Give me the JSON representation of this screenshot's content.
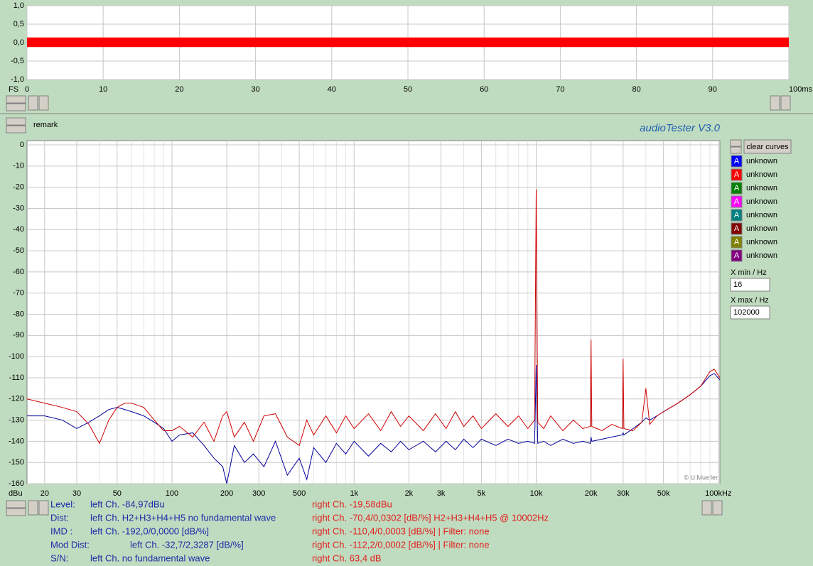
{
  "app": {
    "title": "audioTester  V3.0",
    "remark": "remark",
    "copyright": "© U.Mueller",
    "clear_button": "clear curves",
    "x_min_label": "X min / Hz",
    "x_max_label": "X max / Hz",
    "channels": [
      {
        "symbol": "A",
        "color": "#0000ff",
        "label": "unknown"
      },
      {
        "symbol": "A",
        "color": "#ff0000",
        "label": "unknown"
      },
      {
        "symbol": "A",
        "color": "#008000",
        "label": "unknown"
      },
      {
        "symbol": "A",
        "color": "#ff00ff",
        "label": "unknown"
      },
      {
        "symbol": "A",
        "color": "#008080",
        "label": "unknown"
      },
      {
        "symbol": "A",
        "color": "#800000",
        "label": "unknown"
      },
      {
        "symbol": "A",
        "color": "#808000",
        "label": "unknown"
      },
      {
        "symbol": "A",
        "color": "#800080",
        "label": "unknown"
      }
    ],
    "results": [
      {
        "label": "Level:",
        "left": "left Ch. -84,97dBu",
        "right": "right Ch. -19,58dBu"
      },
      {
        "label": "Dist:",
        "left": "left Ch. H2+H3+H4+H5 no fundamental wave",
        "right": "right Ch. -70,4/0,0302 [dB/%] H2+H3+H4+H5 @ 10002Hz"
      },
      {
        "label": "IMD  :",
        "left": "left Ch. -192,0/0,0000 [dB/%]",
        "right": "right Ch. -110,4/0,0003 [dB/%] |   Filter: none"
      },
      {
        "label": "Mod Dist:",
        "left": "left Ch. -32,7/2,3287 [dB/%]",
        "right": "right Ch. -112,2/0,0002 [dB/%] |   Filter: none"
      },
      {
        "label": "S/N:",
        "left": "left Ch.  no fundamental wave",
        "right": "right Ch. 63,4 dB"
      }
    ]
  },
  "chart_data": [
    {
      "type": "area",
      "y_label": "FS",
      "x": [
        0,
        100
      ],
      "y_high": [
        0.14,
        0.14
      ],
      "y_low": [
        -0.12,
        -0.12
      ],
      "color": "#ff0000",
      "xlim": [
        0,
        100
      ],
      "ylim": [
        -1,
        1
      ],
      "grid": true,
      "xticks": [
        0,
        10,
        20,
        30,
        40,
        50,
        60,
        70,
        80,
        90,
        {
          "value": 100,
          "label": "100ms"
        }
      ],
      "yticks": [
        {
          "value": 1,
          "label": "1,0"
        },
        {
          "value": 0.5,
          "label": "0,5"
        },
        {
          "value": 0,
          "label": "0,0"
        },
        {
          "value": -0.5,
          "label": "-0,5"
        },
        {
          "value": -1,
          "label": "-1,0"
        }
      ]
    },
    {
      "type": "line",
      "y_label": "dBu",
      "log_x": true,
      "grid": true,
      "xlim": [
        16,
        102000
      ],
      "ylim": [
        -160,
        0
      ],
      "xticks": [
        20,
        30,
        50,
        100,
        200,
        300,
        500,
        {
          "value": 1000,
          "label": "1k"
        },
        {
          "value": 2000,
          "label": "2k"
        },
        {
          "value": 3000,
          "label": "3k"
        },
        {
          "value": 5000,
          "label": "5k"
        },
        {
          "value": 10000,
          "label": "10k"
        },
        {
          "value": 20000,
          "label": "20k"
        },
        {
          "value": 30000,
          "label": "30k"
        },
        {
          "value": 50000,
          "label": "50k"
        },
        {
          "value": 100000,
          "label": "100kHz"
        }
      ],
      "minor_xticks": [
        40,
        60,
        70,
        80,
        90,
        400,
        600,
        700,
        800,
        900,
        4000,
        6000,
        7000,
        8000,
        9000,
        40000,
        60000,
        70000,
        80000,
        90000
      ],
      "yticks": [
        0,
        -10,
        -20,
        -30,
        -40,
        -50,
        -60,
        -70,
        -80,
        -90,
        -100,
        -110,
        -120,
        -130,
        -140,
        -150,
        -160
      ],
      "x": [
        16,
        20,
        25,
        30,
        35,
        40,
        45,
        50,
        55,
        60,
        70,
        80,
        90,
        100,
        110,
        130,
        150,
        170,
        190,
        200,
        220,
        250,
        280,
        320,
        370,
        430,
        500,
        550,
        600,
        700,
        800,
        900,
        1000,
        1200,
        1400,
        1600,
        1800,
        2000,
        2400,
        2800,
        3200,
        3600,
        4000,
        4500,
        5000,
        6000,
        7000,
        8000,
        9000,
        9800,
        10000,
        10200,
        11000,
        12000,
        14000,
        16000,
        18000,
        19800,
        20000,
        20200,
        23000,
        26000,
        29700,
        30000,
        30300,
        34000,
        38000,
        40000,
        42000,
        46000,
        50000,
        60000,
        70000,
        80000,
        90000,
        95000,
        102000
      ],
      "series": [
        {
          "color": "#00009c",
          "values": [
            -128,
            -128,
            -130,
            -134,
            -131,
            -128,
            -125,
            -124,
            -125,
            -126,
            -128,
            -131,
            -134,
            -140,
            -137,
            -136,
            -142,
            -148,
            -152,
            -160,
            -142,
            -150,
            -146,
            -152,
            -140,
            -156,
            -148,
            -158,
            -143,
            -150,
            -141,
            -146,
            -140,
            -147,
            -141,
            -145,
            -140,
            -144,
            -140,
            -145,
            -140,
            -144,
            -139,
            -143,
            -139,
            -142,
            -139,
            -141,
            -140,
            -141,
            -104,
            -141,
            -140,
            -142,
            -139,
            -141,
            -140,
            -141,
            -138,
            -140,
            -139,
            -138,
            -137,
            -136,
            -137,
            -134,
            -131,
            -129,
            -130,
            -128,
            -126,
            -122,
            -118,
            -114,
            -109,
            -108,
            -111
          ]
        },
        {
          "color": "#d00000",
          "values": [
            -120,
            -122,
            -124,
            -126,
            -132,
            -141,
            -130,
            -124,
            -122,
            -122,
            -124,
            -130,
            -135,
            -135,
            -133,
            -138,
            -131,
            -140,
            -128,
            -126,
            -138,
            -131,
            -140,
            -128,
            -127,
            -138,
            -142,
            -130,
            -137,
            -128,
            -136,
            -128,
            -134,
            -127,
            -135,
            -126,
            -133,
            -128,
            -135,
            -127,
            -134,
            -126,
            -133,
            -128,
            -134,
            -127,
            -133,
            -128,
            -134,
            -130,
            -21,
            -131,
            -134,
            -128,
            -135,
            -130,
            -134,
            -133,
            -92,
            -133,
            -135,
            -132,
            -134,
            -101,
            -134,
            -135,
            -131,
            -115,
            -132,
            -128,
            -126,
            -122,
            -118,
            -114,
            -107,
            -106,
            -110
          ]
        }
      ]
    }
  ]
}
